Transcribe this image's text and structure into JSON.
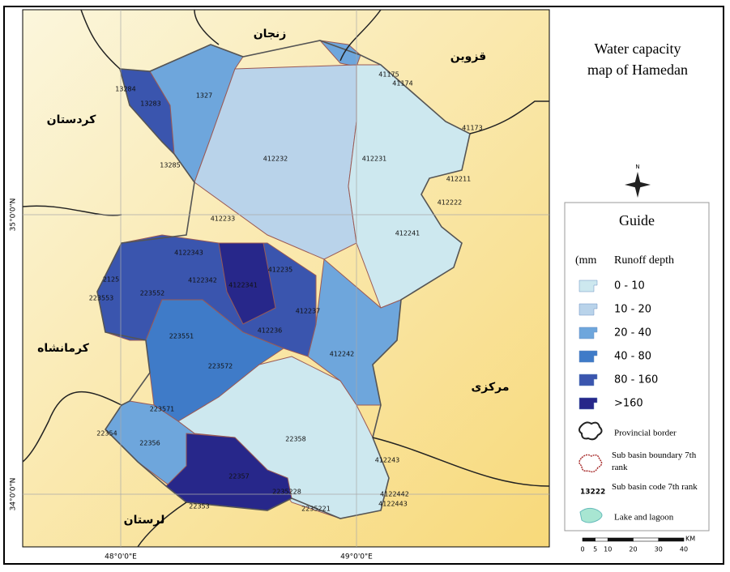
{
  "title": [
    "Water capacity",
    "map of Hamedan"
  ],
  "neighbors": [
    "زنجان",
    "قزوین",
    "کردستان",
    "کرمانشاه",
    "مرکزی",
    "لرستان"
  ],
  "sub_basins": [
    "13284",
    "13283",
    "1327",
    "13285",
    "412232",
    "412231",
    "41175",
    "41174",
    "41173",
    "412211",
    "412222",
    "412241",
    "412233",
    "4122343",
    "2125",
    "223552",
    "223553",
    "4122342",
    "4122341",
    "412235",
    "412237",
    "412236",
    "223551",
    "223572",
    "412242",
    "223571",
    "22354",
    "22356",
    "22358",
    "22357",
    "2235228",
    "2235221",
    "22353",
    "412243",
    "4122442",
    "4122443"
  ],
  "axis_labels": {
    "x": [
      "48°0'0\"E",
      "49°0'0\"E"
    ],
    "y": [
      "35°0'0\"N",
      "34°0'0\"N"
    ]
  },
  "north": "N",
  "legend": {
    "title": "Guide",
    "unit": "(mm",
    "label": "Runoff depth",
    "classes": [
      {
        "label": "0 - 10",
        "color": "#cde8ef"
      },
      {
        "label": "10 - 20",
        "color": "#b9d3ea"
      },
      {
        "label": "20 - 40",
        "color": "#6ea6dc"
      },
      {
        "label": "40 - 80",
        "color": "#3f7bc8"
      },
      {
        "label": "80 - 160",
        "color": "#3a55ae"
      },
      {
        "label": ">160",
        "color": "#27278a"
      }
    ],
    "symbols": {
      "provincial_border": "Provincial border",
      "sub_basin_boundary": "Sub basin boundary 7th rank",
      "code_example": "13222",
      "sub_basin_code": "Sub basin code 7th rank",
      "lake": "Lake and lagoon"
    }
  },
  "scale": {
    "unit": "KM",
    "ticks": [
      0,
      5,
      10,
      20,
      30,
      40
    ]
  }
}
